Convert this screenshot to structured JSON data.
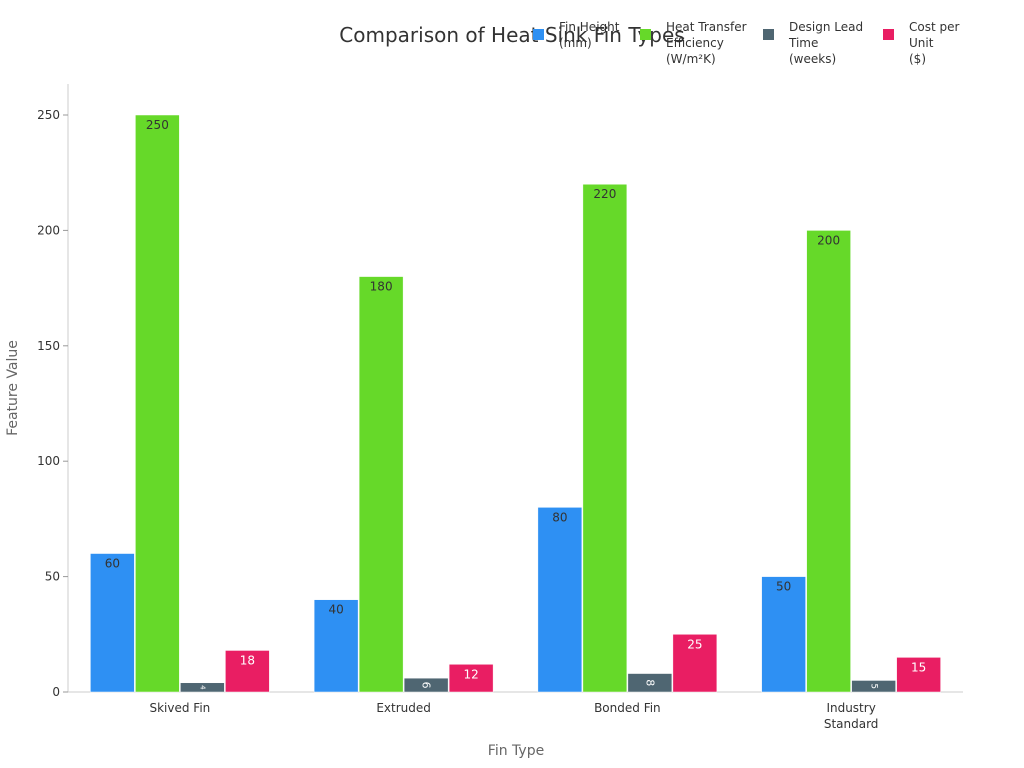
{
  "chart_data": {
    "type": "bar",
    "title": "Comparison of Heat Sink Fin Types",
    "xlabel": "Fin Type",
    "ylabel": "Feature Value",
    "categories": [
      "Skived Fin",
      "Extruded",
      "Bonded Fin",
      "Industry Standard"
    ],
    "series": [
      {
        "name": "Fin Height (mm)",
        "values": [
          60,
          40,
          80,
          50
        ],
        "color": "#2e90f3"
      },
      {
        "name": "Heat Transfer Efficiency (W/m²K)",
        "values": [
          250,
          180,
          220,
          200
        ],
        "color": "#66d929"
      },
      {
        "name": "Design Lead Time (weeks)",
        "values": [
          4,
          6,
          8,
          5
        ],
        "color": "#4f6672"
      },
      {
        "name": "Cost per Unit ($)",
        "values": [
          18,
          12,
          25,
          15
        ],
        "color": "#e91e63"
      }
    ],
    "ylim": [
      0,
      260
    ],
    "yticks": [
      0,
      50,
      100,
      150,
      200,
      250
    ],
    "grid": false,
    "legend_position": "top-right",
    "data_labels": true
  },
  "legend_lines": [
    [
      "Fin Height",
      "(mm)"
    ],
    [
      "Heat Transfer",
      "Efficiency",
      "(W/m²K)"
    ],
    [
      "Design Lead",
      "Time",
      "(weeks)"
    ],
    [
      "Cost per",
      "Unit",
      "($)"
    ]
  ],
  "category_lines": [
    [
      "Skived Fin"
    ],
    [
      "Extruded"
    ],
    [
      "Bonded Fin"
    ],
    [
      "Industry",
      "Standard"
    ]
  ]
}
